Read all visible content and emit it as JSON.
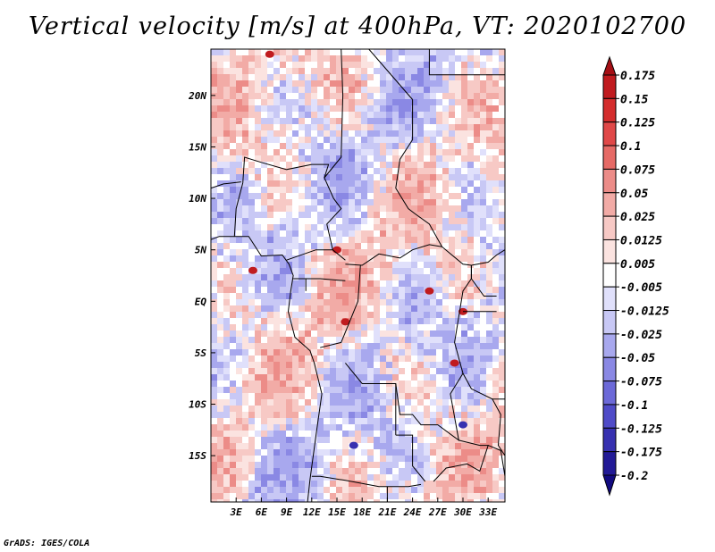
{
  "title": "Vertical velocity [m/s] at 400hPa, VT: 2020102700",
  "footer": "GrADS: IGES/COLA",
  "chart_data": {
    "type": "heatmap",
    "title": "Vertical velocity [m/s] at 400hPa, VT: 2020102700",
    "variable": "Vertical velocity",
    "units": "m/s",
    "level": "400hPa",
    "valid_time": "2020102700",
    "lon_range": [
      0,
      35
    ],
    "lat_range": [
      -19.5,
      24.5
    ],
    "x_ticks": [
      {
        "value": 3,
        "label": "3E"
      },
      {
        "value": 6,
        "label": "6E"
      },
      {
        "value": 9,
        "label": "9E"
      },
      {
        "value": 12,
        "label": "12E"
      },
      {
        "value": 15,
        "label": "15E"
      },
      {
        "value": 18,
        "label": "18E"
      },
      {
        "value": 21,
        "label": "21E"
      },
      {
        "value": 24,
        "label": "24E"
      },
      {
        "value": 27,
        "label": "27E"
      },
      {
        "value": 30,
        "label": "30E"
      },
      {
        "value": 33,
        "label": "33E"
      }
    ],
    "y_ticks": [
      {
        "value": 20,
        "label": "20N"
      },
      {
        "value": 15,
        "label": "15N"
      },
      {
        "value": 10,
        "label": "10N"
      },
      {
        "value": 5,
        "label": "5N"
      },
      {
        "value": 0,
        "label": "EQ"
      },
      {
        "value": -5,
        "label": "5S"
      },
      {
        "value": -10,
        "label": "10S"
      },
      {
        "value": -15,
        "label": "15S"
      }
    ],
    "colorbar": {
      "labels": [
        "0.175",
        "0.15",
        "0.125",
        "0.1",
        "0.075",
        "0.05",
        "0.025",
        "0.0125",
        "0.005",
        "-0.005",
        "-0.0125",
        "-0.025",
        "-0.05",
        "-0.075",
        "-0.1",
        "-0.125",
        "-0.175",
        "-0.2"
      ],
      "colors": [
        "#a50f15",
        "#c01b1f",
        "#d42d2d",
        "#e04848",
        "#e66a66",
        "#ec8c88",
        "#f2aba6",
        "#f7c9c5",
        "#fbe3e0",
        "#ffffff",
        "#e0e0fb",
        "#c8c8f5",
        "#a8a8ee",
        "#8a88e4",
        "#6c69d8",
        "#4f4bc8",
        "#3731b0",
        "#221a96",
        "#120a80"
      ]
    }
  }
}
